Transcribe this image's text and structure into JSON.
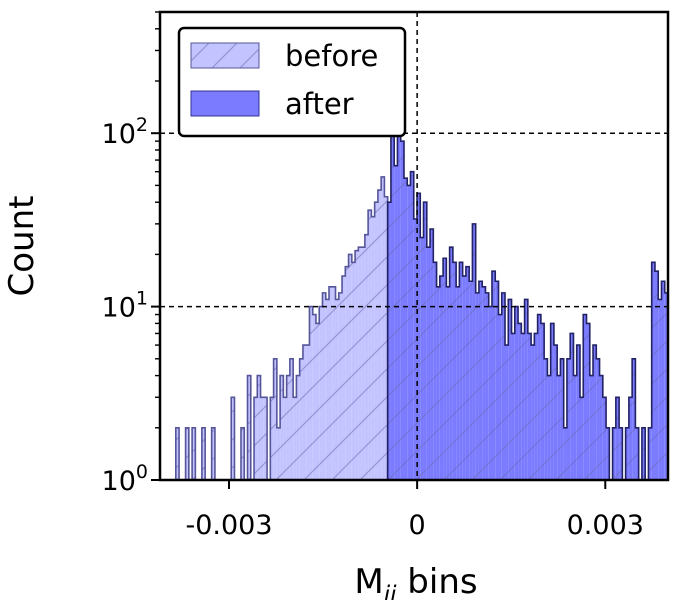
{
  "chart_data": {
    "type": "histogram",
    "yscale": "log",
    "xlim": [
      -0.0041,
      0.004
    ],
    "ylim": [
      1,
      500
    ],
    "xlabel": "M",
    "xlabel_sub": "ii",
    "xlabel_suffix": " bins",
    "ylabel": "Count",
    "xticks": [
      {
        "value": -0.003,
        "label": "-0.003"
      },
      {
        "value": 0,
        "label": "0"
      },
      {
        "value": 0.003,
        "label": "0.003"
      }
    ],
    "yticks": [
      {
        "value": 1,
        "base": "10",
        "exp": "0"
      },
      {
        "value": 10,
        "base": "10",
        "exp": "1"
      },
      {
        "value": 100,
        "base": "10",
        "exp": "2"
      }
    ],
    "reference_lines": {
      "vertical": [
        0
      ],
      "horizontal": [
        10,
        100
      ],
      "style": "dashed"
    },
    "legend": {
      "position": "top-left"
    },
    "bin_range": [
      -0.0039,
      0.004
    ],
    "series": [
      {
        "name": "before",
        "fill": "#c3c3ff",
        "hatch": true,
        "counts": [
          1,
          2,
          1,
          1,
          2,
          1,
          2,
          1,
          1,
          2,
          1,
          1,
          2,
          1,
          1,
          1,
          1,
          1,
          3,
          1,
          1,
          2,
          1,
          4,
          1,
          3,
          4,
          3,
          3,
          1,
          3,
          5,
          2,
          4,
          3,
          4,
          5,
          3,
          4,
          5,
          6,
          6,
          10,
          9,
          8,
          10,
          12,
          11,
          13,
          13,
          11,
          12,
          15,
          17,
          20,
          18,
          21,
          22,
          22,
          26,
          36,
          33,
          40,
          47,
          56,
          43
        ]
      },
      {
        "name": "after",
        "fill": "#7b7bff",
        "hatch": true,
        "counts": [
          40,
          330,
          65,
          120,
          90,
          55,
          50,
          60,
          32,
          45,
          25,
          40,
          22,
          28,
          18,
          13,
          15,
          19,
          13,
          22,
          18,
          13,
          18,
          15,
          17,
          14,
          30,
          12,
          14,
          13,
          12,
          10,
          16,
          14,
          9,
          12,
          6,
          11,
          7,
          10,
          8,
          7,
          11,
          7,
          6,
          7,
          9,
          8,
          5,
          4,
          8,
          6,
          4,
          5,
          2,
          5,
          7,
          4,
          6,
          3,
          9,
          8,
          4,
          6,
          5,
          4,
          3,
          2,
          1,
          2,
          3,
          2,
          1,
          2,
          3,
          5,
          2,
          1,
          2,
          1,
          2,
          18,
          16,
          11,
          14,
          12
        ]
      }
    ]
  }
}
